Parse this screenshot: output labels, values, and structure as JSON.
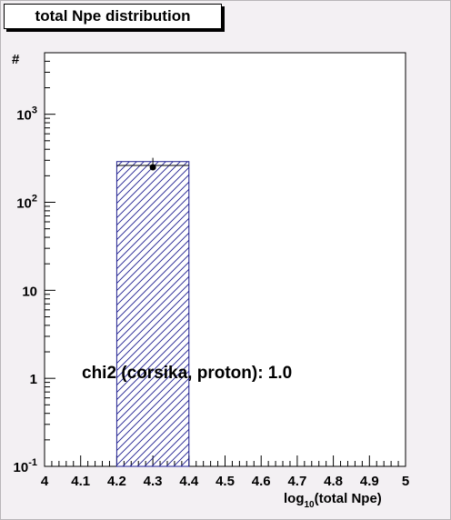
{
  "page": {
    "title": "total Npe distribution"
  },
  "chart_data": {
    "type": "bar",
    "title": "total Npe distribution",
    "xlabel_main": "log",
    "xlabel_sub": "10",
    "xlabel_rest": "(total Npe)",
    "ylabel": "#",
    "xlim": [
      4,
      5
    ],
    "ylim_log": [
      0.1,
      5000
    ],
    "log_y": true,
    "x_ticks": [
      "4",
      "4.1",
      "4.2",
      "4.3",
      "4.4",
      "4.5",
      "4.6",
      "4.7",
      "4.8",
      "4.9",
      "5"
    ],
    "x_tick_values": [
      4,
      4.1,
      4.2,
      4.3,
      4.4,
      4.5,
      4.6,
      4.7,
      4.8,
      4.9,
      5
    ],
    "y_ticks": [
      {
        "value": 0.1,
        "base": "10",
        "exp": "-1"
      },
      {
        "value": 1,
        "base": "1",
        "exp": ""
      },
      {
        "value": 10,
        "base": "10",
        "exp": ""
      },
      {
        "value": 100,
        "base": "10",
        "exp": "2"
      },
      {
        "value": 1000,
        "base": "10",
        "exp": "3"
      }
    ],
    "series": [
      {
        "kind": "histogram",
        "bins": [
          {
            "x0": 4.2,
            "x1": 4.4,
            "value": 290
          }
        ],
        "hatch_color": "#1d1d8f",
        "edge_color": "#1d1d8f"
      },
      {
        "kind": "points",
        "points": [
          {
            "x": 4.3,
            "y": 250,
            "err_lo": 235,
            "err_hi": 320
          }
        ],
        "color": "#000000"
      },
      {
        "kind": "reference-line",
        "segment": {
          "x0": 4.2,
          "x1": 4.4,
          "y": 262
        },
        "color": "#000000"
      }
    ],
    "annotation": "chi2 (corsika, proton): 1.0"
  }
}
